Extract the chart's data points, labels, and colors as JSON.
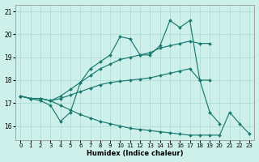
{
  "xlabel": "Humidex (Indice chaleur)",
  "bg_color": "#cdf0ea",
  "grid_color": "#b0ddd8",
  "line_color": "#1a7a70",
  "xlim": [
    -0.5,
    23.5
  ],
  "ylim": [
    15.4,
    21.3
  ],
  "yticks": [
    16,
    17,
    18,
    19,
    20,
    21
  ],
  "xticks": [
    0,
    1,
    2,
    3,
    4,
    5,
    6,
    7,
    8,
    9,
    10,
    11,
    12,
    13,
    14,
    15,
    16,
    17,
    18,
    19,
    20,
    21,
    22,
    23
  ],
  "lines": [
    {
      "x": [
        0,
        1,
        2,
        3,
        4,
        5,
        6,
        7,
        8,
        9,
        10,
        11,
        12,
        13,
        14,
        15,
        16,
        17,
        18,
        19,
        20
      ],
      "y": [
        17.3,
        17.2,
        17.1,
        16.9,
        16.2,
        16.6,
        17.9,
        18.5,
        18.8,
        19.1,
        19.9,
        19.8,
        19.1,
        19.1,
        19.5,
        20.6,
        20.3,
        20.6,
        18.0,
        16.6,
        16.1
      ]
    },
    {
      "x": [
        0,
        1,
        2,
        3,
        4,
        5,
        6,
        7,
        8,
        9,
        10,
        11,
        12,
        13,
        14,
        15,
        16,
        17,
        18,
        19
      ],
      "y": [
        17.3,
        17.2,
        17.2,
        17.1,
        17.3,
        17.6,
        17.9,
        18.2,
        18.5,
        18.7,
        18.9,
        19.0,
        19.1,
        19.2,
        19.4,
        19.5,
        19.6,
        19.7,
        19.6,
        19.6
      ]
    },
    {
      "x": [
        0,
        1,
        2,
        3,
        4,
        5,
        6,
        7,
        8,
        9,
        10,
        11,
        12,
        13,
        14,
        15,
        16,
        17,
        18,
        19
      ],
      "y": [
        17.3,
        17.2,
        17.2,
        17.1,
        17.2,
        17.35,
        17.5,
        17.65,
        17.8,
        17.9,
        17.95,
        18.0,
        18.05,
        18.1,
        18.2,
        18.3,
        18.4,
        18.5,
        18.0,
        18.0
      ]
    },
    {
      "x": [
        0,
        1,
        2,
        3,
        4,
        5,
        6,
        7,
        8,
        9,
        10,
        11,
        12,
        13,
        14,
        15,
        16,
        17,
        18,
        19,
        20,
        21,
        22,
        23
      ],
      "y": [
        17.3,
        17.2,
        17.2,
        17.1,
        16.9,
        16.7,
        16.5,
        16.35,
        16.2,
        16.1,
        16.0,
        15.9,
        15.85,
        15.8,
        15.75,
        15.7,
        15.65,
        15.6,
        15.6,
        15.6,
        15.6,
        16.6,
        16.1,
        15.65
      ]
    }
  ]
}
